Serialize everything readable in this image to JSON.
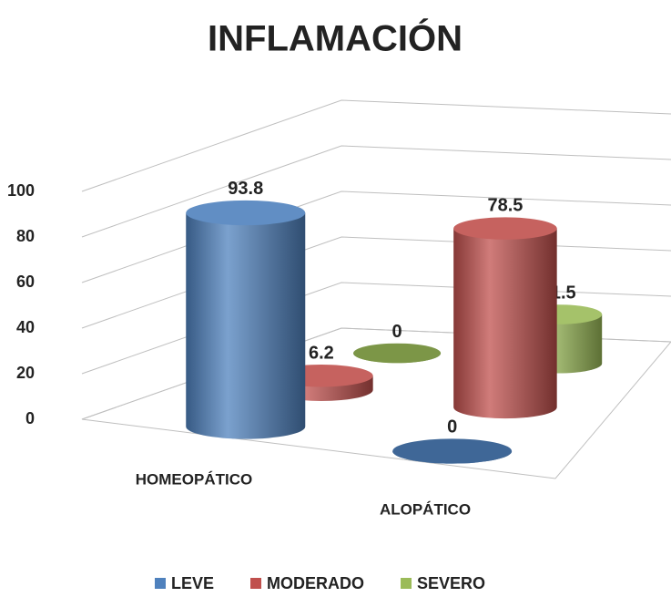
{
  "chart_data": {
    "type": "bar3d",
    "title": "INFLAMACIÓN",
    "categories": [
      "HOMEOPÁTICO",
      "ALOPÁTICO"
    ],
    "series": [
      {
        "name": "LEVE",
        "color": "#4f81bd",
        "values": [
          93.8,
          0
        ]
      },
      {
        "name": "MODERADO",
        "color": "#c0504d",
        "values": [
          6.2,
          78.5
        ]
      },
      {
        "name": "SEVERO",
        "color": "#9bbb59",
        "values": [
          0,
          21.5
        ]
      }
    ],
    "ylim": [
      0,
      100
    ],
    "yticks": [
      0,
      20,
      40,
      60,
      80,
      100
    ],
    "grid": true,
    "legend": "bottom"
  }
}
